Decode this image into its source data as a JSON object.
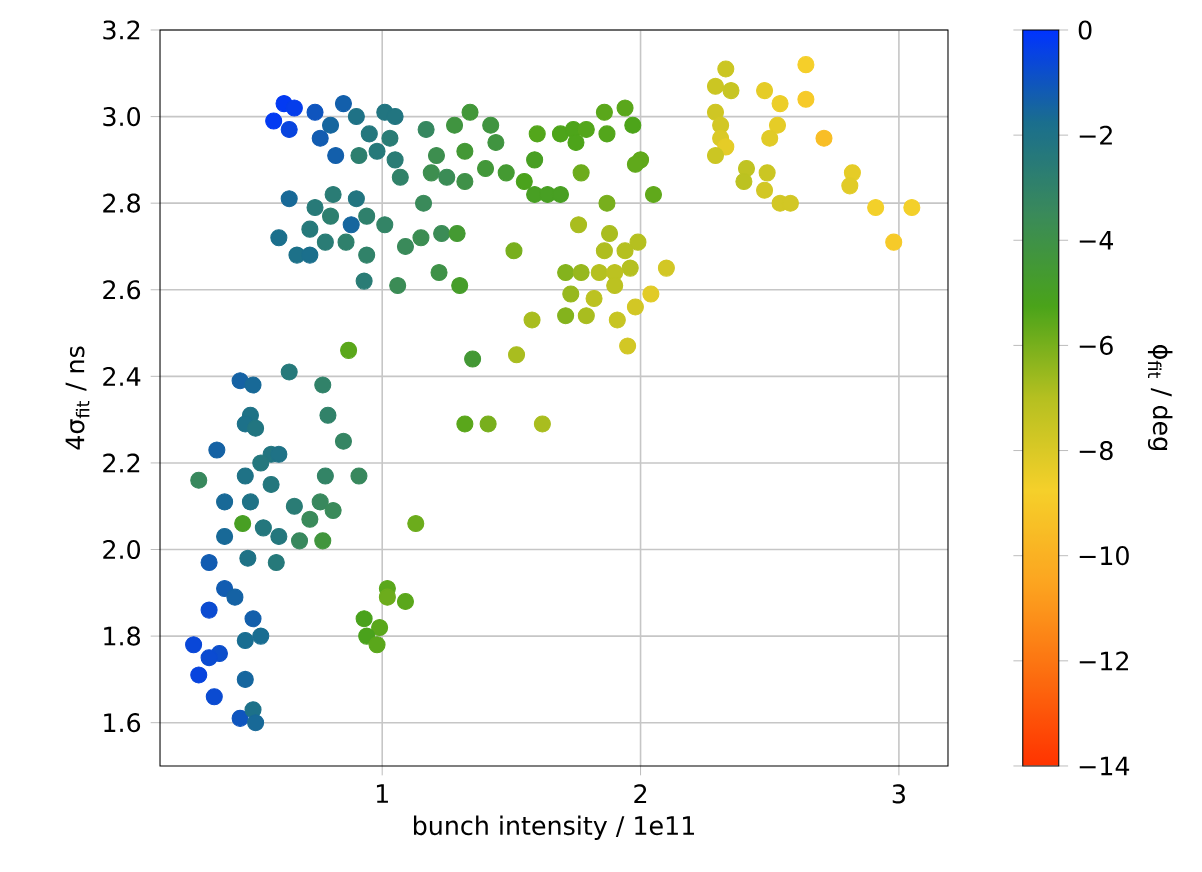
{
  "chart_data": {
    "type": "scatter",
    "xlabel": "bunch intensity / 1e11",
    "ylabel": "4σ$_{fit}$ / ns",
    "clabel": "ϕ$_{fit}$ / deg",
    "x": [
      0.62,
      0.58,
      0.66,
      0.64,
      0.74,
      0.85,
      0.8,
      0.76,
      0.82,
      0.9,
      1.01,
      1.05,
      0.95,
      0.91,
      0.98,
      1.03,
      1.05,
      1.07,
      1.17,
      1.28,
      1.34,
      1.42,
      1.21,
      1.32,
      1.44,
      1.19,
      1.25,
      1.32,
      1.4,
      1.48,
      1.6,
      1.59,
      1.55,
      1.59,
      0.64,
      0.81,
      0.9,
      0.74,
      0.8,
      0.88,
      0.94,
      0.72,
      0.6,
      0.67,
      0.72,
      0.78,
      0.86,
      0.94,
      1.01,
      1.09,
      1.15,
      1.23,
      1.29,
      1.16,
      0.93,
      1.06,
      1.22,
      1.3,
      1.51,
      1.58,
      1.52,
      1.35,
      0.87,
      0.64,
      0.45,
      0.5,
      0.77,
      0.49,
      0.47,
      0.51,
      0.79,
      0.85,
      0.36,
      0.57,
      0.6,
      0.53,
      0.29,
      0.47,
      0.57,
      0.78,
      0.91,
      0.39,
      0.49,
      0.66,
      0.76,
      0.81,
      0.72,
      0.46,
      0.54,
      0.39,
      0.6,
      0.77,
      0.68,
      1.13,
      0.33,
      0.48,
      0.59,
      0.39,
      0.43,
      1.02,
      1.02,
      1.09,
      0.33,
      0.5,
      0.93,
      0.99,
      0.94,
      0.98,
      0.53,
      0.47,
      0.27,
      0.37,
      0.33,
      0.47,
      0.29,
      0.35,
      0.45,
      0.5,
      0.51,
      1.32,
      1.41,
      1.62,
      1.69,
      1.74,
      1.79,
      1.75,
      1.86,
      1.94,
      1.97,
      1.87,
      1.64,
      1.69,
      1.77,
      2.0,
      1.98,
      2.05,
      1.87,
      1.76,
      1.88,
      1.99,
      1.86,
      1.94,
      1.96,
      1.84,
      1.9,
      2.1,
      1.71,
      1.77,
      1.9,
      1.82,
      1.73,
      2.04,
      1.98,
      1.79,
      1.71,
      1.91,
      1.95,
      2.33,
      2.29,
      2.35,
      2.64,
      2.48,
      2.54,
      2.64,
      2.29,
      2.31,
      2.53,
      2.31,
      2.33,
      2.5,
      2.71,
      2.29,
      2.41,
      2.49,
      2.4,
      2.48,
      2.54,
      2.58,
      2.82,
      2.81,
      2.91,
      3.05,
      2.98
    ],
    "values": [
      3.03,
      2.99,
      3.02,
      2.97,
      3.01,
      3.03,
      2.98,
      2.95,
      2.91,
      3.0,
      3.01,
      3.0,
      2.96,
      2.91,
      2.92,
      2.95,
      2.9,
      2.86,
      2.97,
      2.98,
      3.01,
      2.98,
      2.91,
      2.92,
      2.94,
      2.87,
      2.86,
      2.85,
      2.88,
      2.87,
      2.96,
      2.9,
      2.85,
      2.82,
      2.81,
      2.82,
      2.81,
      2.79,
      2.77,
      2.75,
      2.77,
      2.74,
      2.72,
      2.68,
      2.68,
      2.71,
      2.71,
      2.68,
      2.75,
      2.7,
      2.72,
      2.73,
      2.73,
      2.8,
      2.62,
      2.61,
      2.64,
      2.61,
      2.69,
      2.53,
      2.45,
      2.44,
      2.46,
      2.41,
      2.39,
      2.38,
      2.38,
      2.31,
      2.29,
      2.28,
      2.31,
      2.25,
      2.23,
      2.22,
      2.22,
      2.2,
      2.16,
      2.17,
      2.15,
      2.17,
      2.17,
      2.11,
      2.11,
      2.1,
      2.11,
      2.09,
      2.07,
      2.06,
      2.05,
      2.03,
      2.03,
      2.02,
      2.02,
      2.06,
      1.97,
      1.98,
      1.97,
      1.91,
      1.89,
      1.91,
      1.89,
      1.88,
      1.86,
      1.84,
      1.84,
      1.82,
      1.8,
      1.78,
      1.8,
      1.79,
      1.78,
      1.76,
      1.75,
      1.7,
      1.71,
      1.66,
      1.61,
      1.63,
      1.6,
      2.29,
      2.29,
      2.29,
      2.96,
      2.97,
      2.97,
      2.94,
      3.01,
      3.02,
      2.98,
      2.96,
      2.82,
      2.82,
      2.87,
      2.9,
      2.89,
      2.82,
      2.8,
      2.75,
      2.73,
      2.71,
      2.69,
      2.69,
      2.65,
      2.64,
      2.64,
      2.65,
      2.64,
      2.64,
      2.61,
      2.58,
      2.59,
      2.59,
      2.56,
      2.54,
      2.54,
      2.53,
      2.47,
      3.11,
      3.07,
      3.06,
      3.12,
      3.06,
      3.03,
      3.04,
      3.01,
      2.98,
      2.98,
      2.95,
      2.93,
      2.95,
      2.95,
      2.91,
      2.88,
      2.87,
      2.85,
      2.83,
      2.8,
      2.8,
      2.87,
      2.84,
      2.79,
      2.79,
      2.71
    ],
    "cvalues": [
      -0.2,
      -0.2,
      -0.3,
      -0.5,
      -1.0,
      -1.3,
      -1.5,
      -1.2,
      -1.3,
      -2.0,
      -2.2,
      -2.2,
      -2.3,
      -2.8,
      -2.4,
      -2.6,
      -2.6,
      -3.0,
      -3.3,
      -4.2,
      -4.4,
      -4.2,
      -3.8,
      -4.5,
      -4.2,
      -3.8,
      -3.6,
      -4.0,
      -4.4,
      -4.6,
      -5.4,
      -5.0,
      -5.2,
      -5.0,
      -1.6,
      -2.6,
      -2.2,
      -2.5,
      -2.8,
      -1.5,
      -2.9,
      -2.4,
      -1.8,
      -1.9,
      -1.8,
      -2.6,
      -2.9,
      -3.0,
      -3.1,
      -3.5,
      -3.7,
      -3.6,
      -4.6,
      -3.5,
      -2.6,
      -3.6,
      -4.0,
      -4.8,
      -6.0,
      -6.8,
      -6.8,
      -4.5,
      -5.5,
      -2.4,
      -1.4,
      -1.6,
      -3.0,
      -2.0,
      -1.9,
      -2.2,
      -3.0,
      -3.2,
      -1.4,
      -2.2,
      -2.0,
      -2.3,
      -3.4,
      -2.0,
      -2.3,
      -3.1,
      -3.4,
      -1.6,
      -2.0,
      -2.6,
      -3.4,
      -3.5,
      -3.5,
      -5.0,
      -2.3,
      -1.6,
      -2.3,
      -4.3,
      -3.4,
      -5.8,
      -1.2,
      -2.0,
      -2.4,
      -1.2,
      -1.4,
      -5.5,
      -5.8,
      -5.5,
      -0.7,
      -1.3,
      -5.2,
      -5.5,
      -5.2,
      -5.5,
      -1.7,
      -1.7,
      -0.6,
      -0.8,
      -0.7,
      -1.5,
      -0.5,
      -0.7,
      -1.0,
      -1.9,
      -1.6,
      -5.5,
      -6.0,
      -6.8,
      -5.3,
      -5.3,
      -5.4,
      -5.3,
      -5.5,
      -5.5,
      -5.3,
      -5.4,
      -5.0,
      -5.0,
      -5.8,
      -5.6,
      -5.6,
      -5.6,
      -6.0,
      -6.8,
      -6.8,
      -7.0,
      -6.9,
      -7.0,
      -7.0,
      -7.0,
      -7.2,
      -7.8,
      -6.2,
      -6.5,
      -7.2,
      -7.2,
      -6.5,
      -8.2,
      -7.8,
      -6.8,
      -6.2,
      -7.5,
      -7.8,
      -7.6,
      -7.6,
      -7.5,
      -8.8,
      -8.3,
      -8.5,
      -9.0,
      -7.7,
      -7.8,
      -8.3,
      -8.0,
      -8.3,
      -8.2,
      -9.5,
      -7.6,
      -7.3,
      -7.6,
      -7.2,
      -7.8,
      -7.8,
      -7.8,
      -8.3,
      -8.2,
      -8.7,
      -8.7,
      -9.0
    ],
    "xlim": [
      0.14,
      3.19
    ],
    "ylim": [
      1.5,
      3.2
    ],
    "xticks": [
      1,
      2,
      3
    ],
    "yticks": [
      1.6,
      1.8,
      {
        "value": 2,
        "label": "2.0"
      },
      2.2,
      2.4,
      2.6,
      2.8,
      {
        "value": 3,
        "label": "3.0"
      },
      3.2
    ],
    "clim": [
      -14,
      0
    ],
    "cticks": [
      {
        "value": 0,
        "label": "0"
      },
      {
        "value": -2,
        "label": "−2"
      },
      {
        "value": -4,
        "label": "−4"
      },
      {
        "value": -6,
        "label": "−6"
      },
      {
        "value": -8,
        "label": "−8"
      },
      {
        "value": -10,
        "label": "−10"
      },
      {
        "value": -12,
        "label": "−12"
      },
      {
        "value": -14,
        "label": "−14"
      }
    ],
    "grid": true,
    "marker": "circle"
  }
}
